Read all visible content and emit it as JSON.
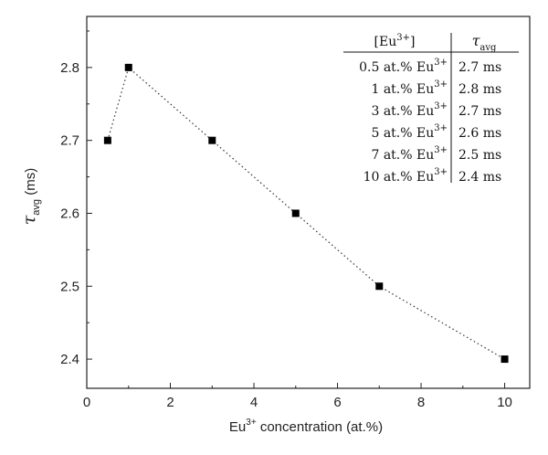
{
  "chart_data": {
    "type": "scatter",
    "title": "",
    "xlabel": {
      "pre": "Eu",
      "sup": "3+",
      "post": " concentration (at.%)"
    },
    "ylabel": {
      "main": "τ",
      "sub": "avg",
      "post": " (ms)"
    },
    "xlim": [
      0,
      10.6
    ],
    "ylim": [
      2.36,
      2.87
    ],
    "xticks": [
      "0",
      "2",
      "4",
      "6",
      "8",
      "10"
    ],
    "yticks": [
      "2.4",
      "2.5",
      "2.6",
      "2.7",
      "2.8"
    ],
    "grid": false,
    "line_style": "dotted",
    "x": [
      0.5,
      1,
      3,
      5,
      7,
      10
    ],
    "y": [
      2.7,
      2.8,
      2.7,
      2.6,
      2.5,
      2.4
    ],
    "inset_table": {
      "headers": [
        {
          "text": "[Eu",
          "sup": "3+",
          "post": "]"
        },
        {
          "text": "τ",
          "sub": "avg"
        }
      ],
      "rows": [
        {
          "conc": "0.5 at.% Eu",
          "sup": "3+",
          "tau": "2.7 ms"
        },
        {
          "conc": "1 at.% Eu",
          "sup": "3+",
          "tau": "2.8 ms"
        },
        {
          "conc": "3 at.% Eu",
          "sup": "3+",
          "tau": "2.7 ms"
        },
        {
          "conc": "5 at.% Eu",
          "sup": "3+",
          "tau": "2.6 ms"
        },
        {
          "conc": "7 at.% Eu",
          "sup": "3+",
          "tau": "2.5 ms"
        },
        {
          "conc": "10 at.% Eu",
          "sup": "3+",
          "tau": "2.4 ms"
        }
      ]
    },
    "colors": {
      "marker": "#000000",
      "line": "#333333",
      "axis": "#222222"
    }
  }
}
